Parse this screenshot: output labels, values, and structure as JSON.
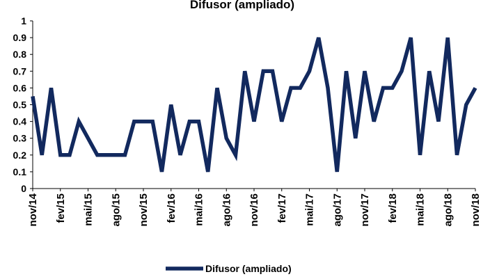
{
  "chart_data": {
    "type": "line",
    "title": "Difusor (ampliado)",
    "categories": [
      "nov/14",
      null,
      null,
      "fev/15",
      null,
      null,
      "mai/15",
      null,
      null,
      "ago/15",
      null,
      null,
      "nov/15",
      null,
      null,
      "fev/16",
      null,
      null,
      "mai/16",
      null,
      null,
      "ago/16",
      null,
      null,
      "nov/16",
      null,
      null,
      "fev/17",
      null,
      null,
      "mai/17",
      null,
      null,
      "ago/17",
      null,
      null,
      "nov/17",
      null,
      null,
      "fev/18",
      null,
      null,
      "mai/18",
      null,
      null,
      "ago/18",
      null,
      null,
      "nov/18"
    ],
    "series": [
      {
        "name": "Difusor (ampliado)",
        "color": "#12295e",
        "values": [
          0.55,
          0.2,
          0.6,
          0.2,
          0.2,
          0.4,
          0.3,
          0.2,
          0.2,
          0.2,
          0.2,
          0.4,
          0.4,
          0.4,
          0.1,
          0.5,
          0.2,
          0.4,
          0.4,
          0.1,
          0.6,
          0.3,
          0.2,
          0.7,
          0.4,
          0.7,
          0.7,
          0.4,
          0.6,
          0.6,
          0.7,
          0.9,
          0.6,
          0.1,
          0.7,
          0.3,
          0.7,
          0.4,
          0.6,
          0.6,
          0.7,
          0.9,
          0.2,
          0.7,
          0.4,
          0.9,
          0.2,
          0.5,
          0.6
        ]
      }
    ],
    "ylim": [
      0,
      1
    ],
    "yticks": [
      0,
      0.1,
      0.2,
      0.3,
      0.4,
      0.5,
      0.6,
      0.7,
      0.8,
      0.9,
      1
    ],
    "grid": false,
    "legend": "bottom"
  }
}
